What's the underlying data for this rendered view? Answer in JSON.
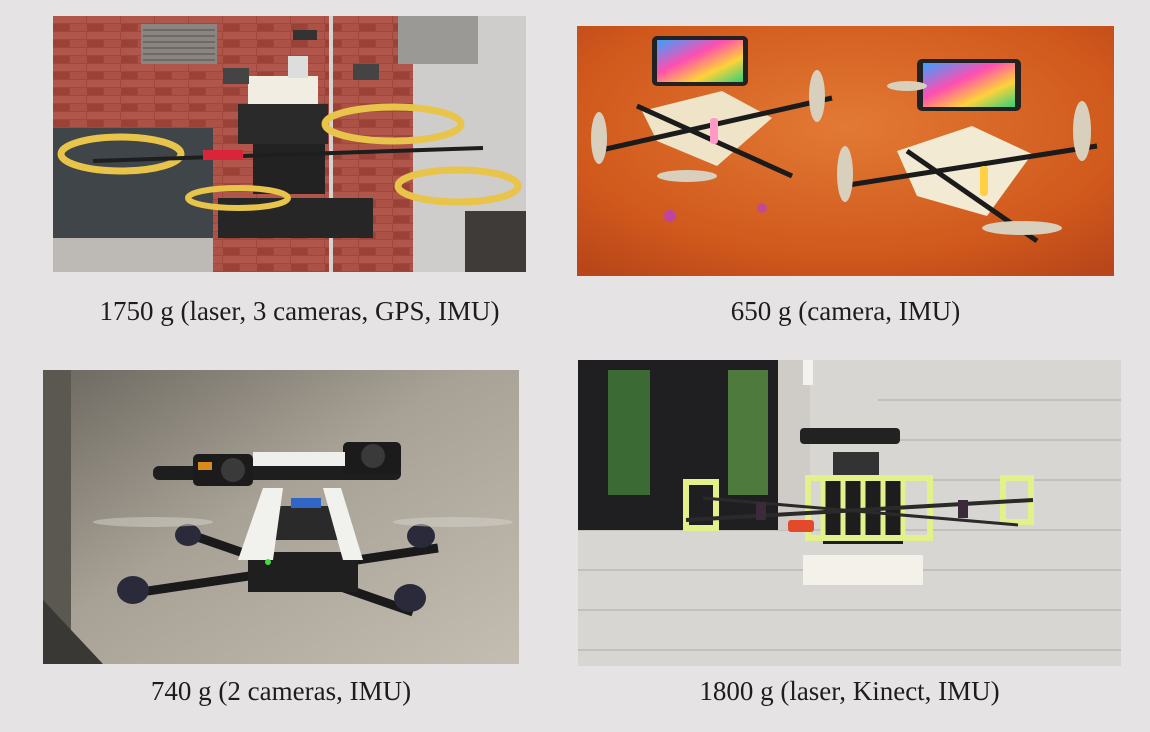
{
  "panels": [
    {
      "caption": "1750 g (laser, 3 cameras, GPS, IMU)",
      "image": "quadrotor-laser-cameras-gps-photo"
    },
    {
      "caption": "650 g (camera, IMU)",
      "image": "smartphone-quadrotors-photo"
    },
    {
      "caption": "740 g (2 cameras, IMU)",
      "image": "stereo-camera-quadrotor-photo"
    },
    {
      "caption": "1800 g (laser, Kinect, IMU)",
      "image": "kinect-laser-quadrotor-photo"
    }
  ],
  "colors": {
    "background": "#e6e3e5",
    "caption_text": "#1d1d1d",
    "prop_guard_yellow": "#e8c44a",
    "orange_floor": "#d9661f",
    "lime_frame": "#e4f08a"
  }
}
